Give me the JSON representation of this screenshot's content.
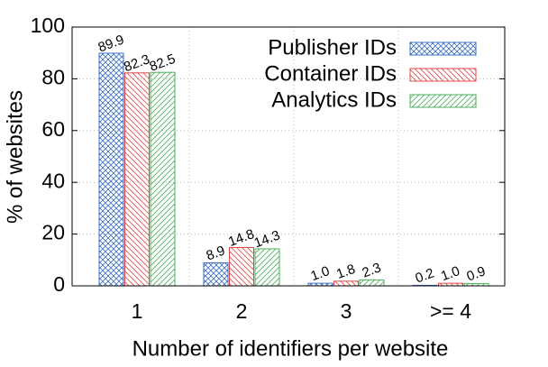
{
  "chart_data": {
    "type": "bar",
    "ylabel": "% of websites",
    "xlabel": "Number of identifiers per website",
    "categories": [
      "1",
      "2",
      "3",
      ">= 4"
    ],
    "series": [
      {
        "name": "Publisher IDs",
        "color": "#3c6fc2",
        "values": [
          89.9,
          8.9,
          1.0,
          0.2
        ],
        "value_labels": [
          "89.9",
          "8.9",
          "1.0",
          "0.2"
        ]
      },
      {
        "name": "Container IDs",
        "color": "#e04848",
        "values": [
          82.3,
          14.8,
          1.8,
          1.0
        ],
        "value_labels": [
          "82.3",
          "14.8",
          "1.8",
          "1.0"
        ]
      },
      {
        "name": "Analytics IDs",
        "color": "#4caf58",
        "values": [
          82.5,
          14.3,
          2.3,
          0.9
        ],
        "value_labels": [
          "82.5",
          "14.3",
          "2.3",
          "0.9"
        ]
      }
    ],
    "ylim": [
      0,
      100
    ],
    "yticks": [
      0,
      20,
      40,
      60,
      80,
      100
    ],
    "grid": true,
    "legend": "top-right"
  }
}
